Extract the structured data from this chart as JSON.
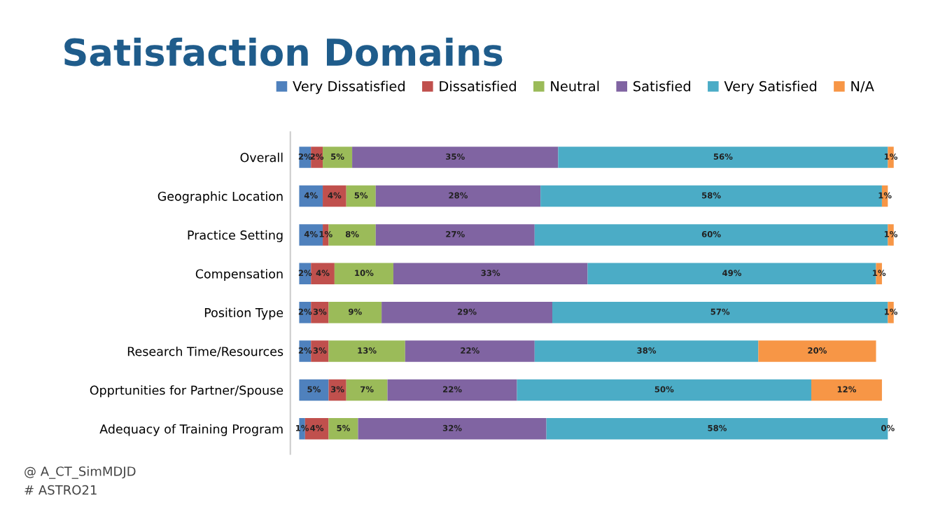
{
  "chart_data": {
    "type": "bar",
    "orientation": "horizontal",
    "stacked": true,
    "title": "Satisfaction Domains",
    "categories": [
      "Overall",
      "Geographic Location",
      "Practice Setting",
      "Compensation",
      "Position Type",
      "Research Time/Resources",
      "Opprtunities for Partner/Spouse",
      "Adequacy of Training Program"
    ],
    "series": [
      {
        "name": "Very Dissatisfied",
        "color": "#4f81bd",
        "values": [
          2,
          4,
          4,
          2,
          2,
          2,
          5,
          1
        ],
        "value_labels": [
          "2%",
          "4%",
          "4%",
          "2%",
          "2%",
          "2%",
          "5%",
          "1%"
        ]
      },
      {
        "name": "Dissatisfied",
        "color": "#c0504d",
        "values": [
          2,
          4,
          1,
          4,
          3,
          3,
          3,
          4
        ],
        "value_labels": [
          "2%",
          "4%",
          "1%",
          "4%",
          "3%",
          "3%",
          "3%",
          "4%"
        ]
      },
      {
        "name": "Neutral",
        "color": "#9bbb59",
        "values": [
          5,
          5,
          8,
          10,
          9,
          13,
          7,
          5
        ],
        "value_labels": [
          "5%",
          "5%",
          "8%",
          "10%",
          "9%",
          "13%",
          "7%",
          "5%"
        ]
      },
      {
        "name": "Satisfied",
        "color": "#8064a2",
        "values": [
          35,
          28,
          27,
          33,
          29,
          22,
          22,
          32
        ],
        "value_labels": [
          "35%",
          "28%",
          "27%",
          "33%",
          "29%",
          "22%",
          "22%",
          "32%"
        ]
      },
      {
        "name": "Very Satisfied",
        "color": "#4bacc6",
        "values": [
          56,
          58,
          60,
          49,
          57,
          38,
          50,
          58
        ],
        "value_labels": [
          "56%",
          "58%",
          "60%",
          "49%",
          "57%",
          "38%",
          "50%",
          "58%"
        ]
      },
      {
        "name": "N/A",
        "color": "#f79646",
        "values": [
          1,
          1,
          1,
          1,
          1,
          20,
          12,
          0
        ],
        "value_labels": [
          "1%",
          "1%",
          "1%",
          "1%",
          "1%",
          "20%",
          "12%",
          "0%"
        ]
      }
    ],
    "legend": "top",
    "grid": false,
    "annotations": [
      "@ A_CT_SimMDJD",
      "# ASTRO21"
    ]
  }
}
